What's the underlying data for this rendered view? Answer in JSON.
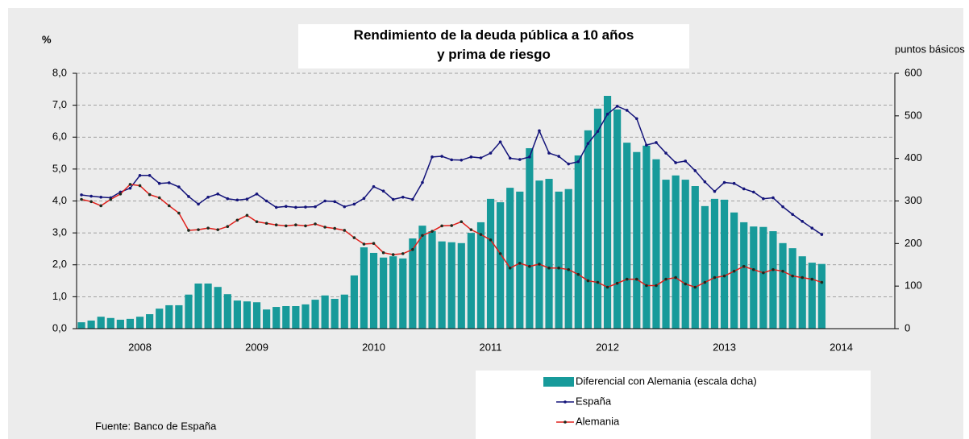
{
  "chart_data": {
    "type": "bar",
    "title": "Rendimiento de la deuda pública a 10 años\ny prima de riesgo",
    "y_label": "%",
    "y2_label": "puntos básicos",
    "source": "Fuente: Banco de España",
    "categories": [
      null,
      null,
      null,
      null,
      null,
      null,
      "2008",
      null,
      null,
      null,
      null,
      null,
      null,
      null,
      null,
      null,
      null,
      null,
      "2009",
      null,
      null,
      null,
      null,
      null,
      null,
      null,
      null,
      null,
      null,
      null,
      "2010",
      null,
      null,
      null,
      null,
      null,
      null,
      null,
      null,
      null,
      null,
      null,
      "2011",
      null,
      null,
      null,
      null,
      null,
      null,
      null,
      null,
      null,
      null,
      null,
      "2012",
      null,
      null,
      null,
      null,
      null,
      null,
      null,
      null,
      null,
      null,
      null,
      "2013",
      null,
      null,
      null,
      null,
      null,
      null,
      null,
      null,
      null,
      null,
      null,
      "2014",
      null,
      null,
      null,
      null,
      null
    ],
    "series": [
      {
        "name": "Diferencial con Alemania (escala dcha)",
        "type": "bar",
        "axis": "y2",
        "color": "#179a9a",
        "values": [
          15,
          19,
          28,
          25,
          21,
          23,
          28,
          34,
          47,
          55,
          55,
          80,
          106,
          106,
          98,
          81,
          66,
          64,
          62,
          45,
          51,
          53,
          53,
          57,
          68,
          78,
          70,
          80,
          125,
          191,
          178,
          167,
          170,
          165,
          212,
          242,
          229,
          205,
          203,
          201,
          225,
          250,
          305,
          297,
          331,
          322,
          424,
          348,
          352,
          322,
          328,
          407,
          466,
          517,
          547,
          515,
          437,
          415,
          430,
          398,
          350,
          360,
          350,
          335,
          288,
          305,
          303,
          273,
          250,
          240,
          239,
          229,
          201,
          189,
          170,
          155,
          152,
          null,
          null,
          null,
          null,
          null,
          null,
          null
        ]
      },
      {
        "name": "España",
        "type": "line",
        "color": "#14147a",
        "marker": "#14147a",
        "values": [
          4.19,
          4.15,
          4.12,
          4.1,
          4.28,
          4.4,
          4.8,
          4.8,
          4.55,
          4.57,
          4.44,
          4.14,
          3.9,
          4.12,
          4.22,
          4.07,
          4.03,
          4.06,
          4.22,
          4.0,
          3.8,
          3.83,
          3.8,
          3.81,
          3.82,
          4.0,
          3.98,
          3.82,
          3.9,
          4.08,
          4.45,
          4.31,
          4.05,
          4.12,
          4.05,
          4.58,
          5.38,
          5.4,
          5.29,
          5.28,
          5.38,
          5.35,
          5.5,
          5.85,
          5.34,
          5.3,
          5.38,
          6.2,
          5.5,
          5.4,
          5.16,
          5.23,
          5.8,
          6.18,
          6.72,
          6.97,
          6.84,
          6.58,
          5.75,
          5.83,
          5.5,
          5.2,
          5.25,
          4.95,
          4.6,
          4.3,
          4.58,
          4.55,
          4.38,
          4.28,
          4.07,
          4.1,
          3.82,
          3.58,
          3.36,
          3.15,
          2.95,
          null,
          null,
          null,
          null,
          null,
          null,
          null
        ]
      },
      {
        "name": "Alemania",
        "type": "line",
        "color": "#e0201b",
        "marker": "#1e2a1e",
        "values": [
          4.05,
          3.98,
          3.85,
          4.05,
          4.22,
          4.52,
          4.48,
          4.2,
          4.1,
          3.85,
          3.62,
          3.08,
          3.1,
          3.15,
          3.1,
          3.2,
          3.4,
          3.55,
          3.35,
          3.3,
          3.25,
          3.22,
          3.25,
          3.22,
          3.28,
          3.18,
          3.14,
          3.08,
          2.85,
          2.65,
          2.67,
          2.38,
          2.32,
          2.35,
          2.48,
          2.92,
          3.05,
          3.22,
          3.23,
          3.35,
          3.1,
          2.95,
          2.78,
          2.35,
          1.9,
          2.05,
          1.95,
          2.02,
          1.9,
          1.9,
          1.85,
          1.7,
          1.5,
          1.45,
          1.3,
          1.42,
          1.55,
          1.55,
          1.35,
          1.35,
          1.55,
          1.6,
          1.4,
          1.3,
          1.45,
          1.6,
          1.65,
          1.8,
          1.95,
          1.85,
          1.75,
          1.85,
          1.8,
          1.65,
          1.6,
          1.55,
          1.45,
          null,
          null,
          null,
          null,
          null,
          null,
          null
        ]
      }
    ],
    "ylim": [
      0,
      8
    ],
    "yticks": [
      {
        "value": 0,
        "label": "0,0"
      },
      {
        "value": 1,
        "label": "1,0"
      },
      {
        "value": 2,
        "label": "2,0"
      },
      {
        "value": 3,
        "label": "3,0"
      },
      {
        "value": 4,
        "label": "4,0"
      },
      {
        "value": 5,
        "label": "5,0"
      },
      {
        "value": 6,
        "label": "6,0"
      },
      {
        "value": 7,
        "label": "7,0"
      },
      {
        "value": 8,
        "label": "8,0"
      }
    ],
    "y2lim": [
      0,
      600
    ],
    "y2ticks": [
      0,
      100,
      200,
      300,
      400,
      500,
      600
    ],
    "grid": true
  }
}
